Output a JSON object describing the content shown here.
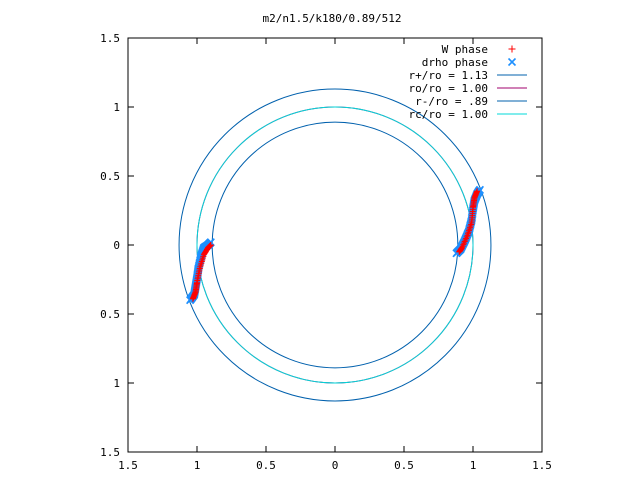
{
  "chart_data": {
    "type": "scatter",
    "title": "m2/n1.5/k180/0.89/512",
    "xlim": [
      -1.5,
      1.5
    ],
    "ylim": [
      -1.5,
      1.5
    ],
    "x_ticks": [
      "1.5",
      "1",
      "0.5",
      "0",
      "0.5",
      "1",
      "1.5"
    ],
    "x_tick_values": [
      -1.5,
      -1,
      -0.5,
      0,
      0.5,
      1,
      1.5
    ],
    "y_ticks": [
      "1.5",
      "1",
      "0.5",
      "0",
      "0.5",
      "1",
      "1.5"
    ],
    "y_tick_values": [
      1.5,
      1,
      0.5,
      0,
      -0.5,
      -1,
      -1.5
    ],
    "grid": false,
    "legend_position": "top-right",
    "series": [
      {
        "name": "W phase",
        "kind": "points",
        "marker": "plus",
        "color": "#ff0000",
        "arcs": [
          {
            "x": [
              -1.03,
              -1.01,
              -1.0,
              -0.98,
              -0.95,
              -0.92,
              -0.9
            ],
            "y": [
              -0.39,
              -0.34,
              -0.27,
              -0.17,
              -0.07,
              -0.02,
              0.0
            ]
          },
          {
            "x": [
              0.9,
              0.92,
              0.96,
              0.99,
              1.0,
              1.01,
              1.03
            ],
            "y": [
              -0.05,
              -0.02,
              0.07,
              0.16,
              0.27,
              0.34,
              0.39
            ]
          }
        ]
      },
      {
        "name": "drho phase",
        "kind": "points",
        "marker": "cross",
        "color": "#1e90ff",
        "arcs": [
          {
            "x": [
              -1.05,
              -1.02,
              -1.01,
              -1.0,
              -0.99,
              -0.97,
              -0.95,
              -0.92,
              -0.9
            ],
            "y": [
              -0.4,
              -0.36,
              -0.3,
              -0.24,
              -0.17,
              -0.08,
              -0.02,
              0.0,
              0.02
            ]
          },
          {
            "x": [
              0.88,
              0.91,
              0.94,
              0.97,
              0.99,
              1.0,
              1.01,
              1.03,
              1.05
            ],
            "y": [
              -0.06,
              -0.03,
              0.03,
              0.1,
              0.18,
              0.26,
              0.32,
              0.37,
              0.4
            ]
          }
        ]
      },
      {
        "name": "r+/ro = 1.13",
        "kind": "circle",
        "radius": 1.13,
        "color": "#0060ad"
      },
      {
        "name": "ro/ro = 1.00",
        "kind": "circle",
        "radius": 1.0,
        "color": "#a0006e",
        "hidden_by_overlap": true
      },
      {
        "name": "r-/ro = .89",
        "kind": "circle",
        "radius": 0.89,
        "color": "#0060ad"
      },
      {
        "name": "rc/ro = 1.00",
        "kind": "circle",
        "radius": 1.0,
        "color": "#00d8d8"
      }
    ]
  }
}
